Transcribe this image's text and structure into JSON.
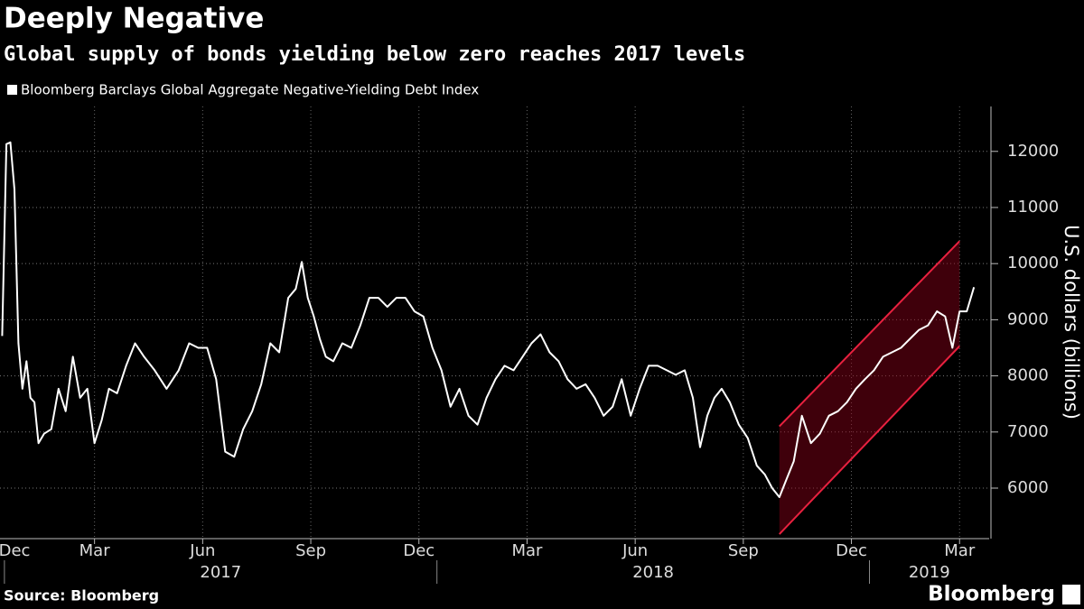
{
  "chart_data": {
    "type": "line",
    "title": "Deeply Negative",
    "subtitle": "Global supply of bonds yielding below zero reaches 2017 levels",
    "y_label": "U.S. dollars (billions)",
    "source": "Source: Bloomberg",
    "logo": "Bloomberg",
    "x": [
      "2016-12",
      "2017-01",
      "2017-01",
      "2017-01",
      "2017-01",
      "2017-01",
      "2017-01",
      "2017-01",
      "2017-01",
      "2017-01",
      "2017-02",
      "2017-02",
      "2017-02",
      "2017-02",
      "2017-02",
      "2017-03",
      "2017-03",
      "2017-03",
      "2017-03",
      "2017-03",
      "2017-04",
      "2017-04",
      "2017-04",
      "2017-04",
      "2017-05",
      "2017-05",
      "2017-05",
      "2017-06",
      "2017-06",
      "2017-06",
      "2017-06",
      "2017-07",
      "2017-07",
      "2017-07",
      "2017-07",
      "2017-08",
      "2017-08",
      "2017-08",
      "2017-08",
      "2017-09",
      "2017-09",
      "2017-09",
      "2017-09",
      "2017-09",
      "2017-09",
      "2017-10",
      "2017-10",
      "2017-10",
      "2017-10",
      "2017-11",
      "2017-11",
      "2017-11",
      "2017-11",
      "2017-12",
      "2017-12",
      "2017-12",
      "2017-12",
      "2018-01",
      "2018-01",
      "2018-01",
      "2018-01",
      "2018-02",
      "2018-02",
      "2018-02",
      "2018-02",
      "2018-03",
      "2018-03",
      "2018-03",
      "2018-03",
      "2018-04",
      "2018-04",
      "2018-04",
      "2018-04",
      "2018-05",
      "2018-05",
      "2018-05",
      "2018-05",
      "2018-06",
      "2018-06",
      "2018-06",
      "2018-06",
      "2018-07",
      "2018-07",
      "2018-07",
      "2018-07",
      "2018-08",
      "2018-08",
      "2018-08",
      "2018-08",
      "2018-08",
      "2018-09",
      "2018-09",
      "2018-09",
      "2018-09",
      "2018-10",
      "2018-10",
      "2018-10",
      "2018-10",
      "2018-10",
      "2018-11",
      "2018-11",
      "2018-11",
      "2018-11",
      "2018-12",
      "2018-12",
      "2018-12",
      "2018-12",
      "2019-01",
      "2019-01",
      "2019-01",
      "2019-01",
      "2019-02",
      "2019-02",
      "2019-02",
      "2019-02",
      "2019-03",
      "2019-03",
      "2019-03",
      "2019-03",
      "2019-03"
    ],
    "series": [
      {
        "name": "Bloomberg Barclays Global Aggregate Negative-Yielding Debt Index",
        "color": "#ffffff",
        "values": [
          8710,
          12130,
          12160,
          11320,
          8580,
          7770,
          8260,
          7610,
          7530,
          6800,
          6970,
          7050,
          7770,
          7370,
          8340,
          7610,
          7770,
          6800,
          7210,
          7770,
          7690,
          8180,
          8580,
          8340,
          8100,
          7770,
          8100,
          8580,
          8500,
          8500,
          7940,
          6650,
          6560,
          7050,
          7370,
          7850,
          8580,
          8420,
          9390,
          9550,
          10030,
          9390,
          9060,
          8660,
          8340,
          8260,
          8580,
          8500,
          8900,
          9390,
          9390,
          9230,
          9390,
          9390,
          9150,
          9060,
          8500,
          8100,
          7450,
          7770,
          7290,
          7130,
          7610,
          7940,
          8180,
          8100,
          8340,
          8580,
          8740,
          8420,
          8260,
          7940,
          7770,
          7850,
          7610,
          7290,
          7450,
          7940,
          7290,
          7770,
          8180,
          8180,
          8100,
          8020,
          8100,
          7610,
          6730,
          7290,
          7610,
          7770,
          7530,
          7130,
          6890,
          6400,
          6240,
          6000,
          5840,
          6160,
          6480,
          7290,
          6800,
          6970,
          7290,
          7370,
          7530,
          7770,
          7940,
          8100,
          8340,
          8420,
          8500,
          8660,
          8820,
          8900,
          9150,
          9060,
          8500,
          9150,
          9150,
          9580
        ]
      }
    ],
    "channel": {
      "x": [
        "2018-10",
        "2019-03"
      ],
      "upper": [
        7100,
        10400
      ],
      "lower": [
        5180,
        8530
      ],
      "color": "#e8213f"
    },
    "xticks": [
      {
        "value": "2016-12",
        "label": "Dec"
      },
      {
        "value": "2017-03",
        "label": "Mar"
      },
      {
        "value": "2017-06",
        "label": "Jun"
      },
      {
        "value": "2017-09",
        "label": "Sep"
      },
      {
        "value": "2017-12",
        "label": "Dec"
      },
      {
        "value": "2018-03",
        "label": "Mar"
      },
      {
        "value": "2018-06",
        "label": "Jun"
      },
      {
        "value": "2018-09",
        "label": "Sep"
      },
      {
        "value": "2018-12",
        "label": "Dec"
      },
      {
        "value": "2019-03",
        "label": "Mar"
      }
    ],
    "year_labels": [
      "2017",
      "2018",
      "2019"
    ],
    "ylim": [
      5100,
      12800
    ],
    "yticks": [
      6000,
      7000,
      8000,
      9000,
      10000,
      11000,
      12000
    ],
    "grid": true
  }
}
